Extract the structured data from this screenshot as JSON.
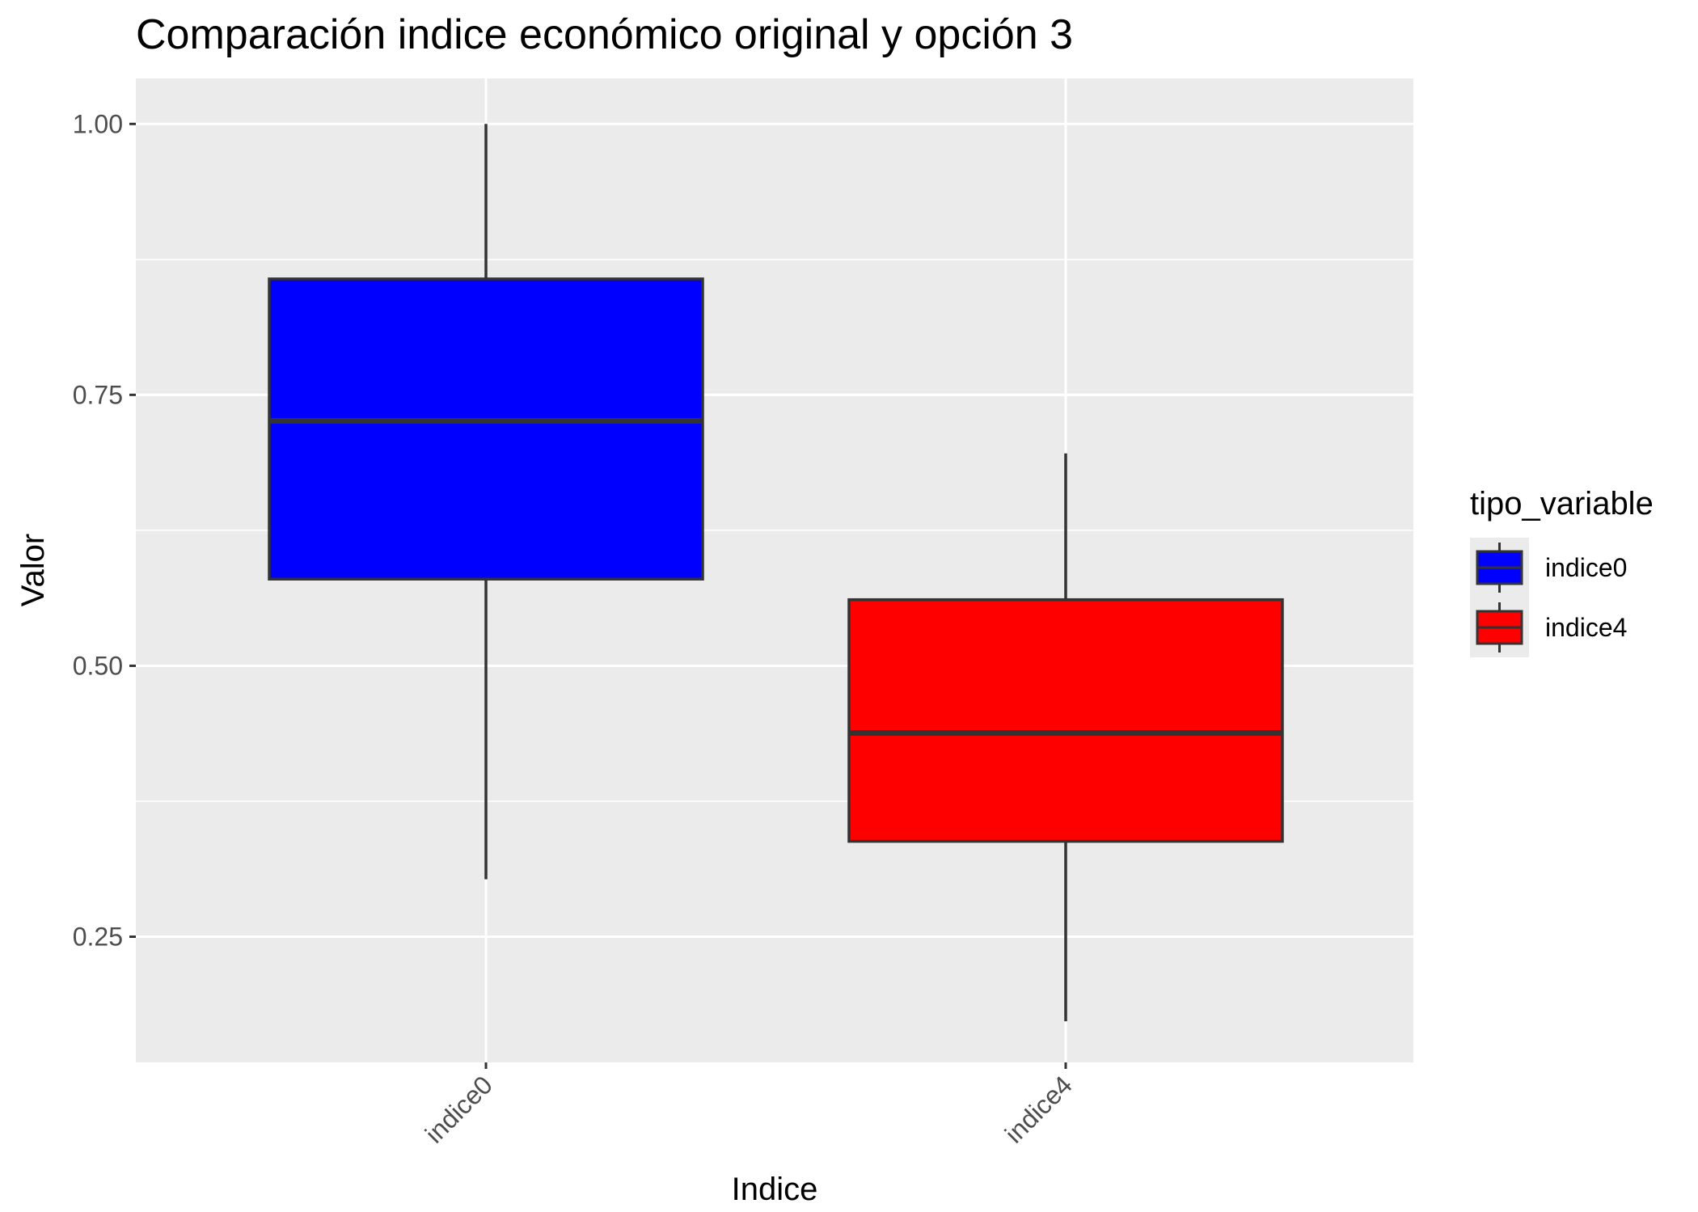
{
  "chart_data": {
    "type": "boxplot",
    "title": "Comparación indice económico original y opción 3",
    "xlabel": "Indice",
    "ylabel": "Valor",
    "categories": [
      "indice0",
      "indice4"
    ],
    "ylim": [
      0.134,
      1.042
    ],
    "yticks": [
      0.25,
      0.5,
      0.75,
      1.0
    ],
    "ytick_labels": [
      "0.25",
      "0.50",
      "0.75",
      "1.00"
    ],
    "grid": true,
    "legend": {
      "title": "tipo_variable",
      "position": "right",
      "entries": [
        {
          "label": "indice0",
          "color": "#0000FF"
        },
        {
          "label": "indice4",
          "color": "#FF0000"
        }
      ]
    },
    "series": [
      {
        "name": "indice0",
        "color": "#0000FF",
        "min": 0.303,
        "q1": 0.58,
        "median": 0.726,
        "q3": 0.857,
        "max": 1.0
      },
      {
        "name": "indice4",
        "color": "#FF0000",
        "min": 0.172,
        "q1": 0.338,
        "median": 0.438,
        "q3": 0.561,
        "max": 0.696
      }
    ]
  },
  "colors": {
    "panel_background": "#EBEBEB",
    "grid": "#FFFFFF",
    "box_outline": "#333333",
    "tick_text": "#4D4D4D"
  }
}
